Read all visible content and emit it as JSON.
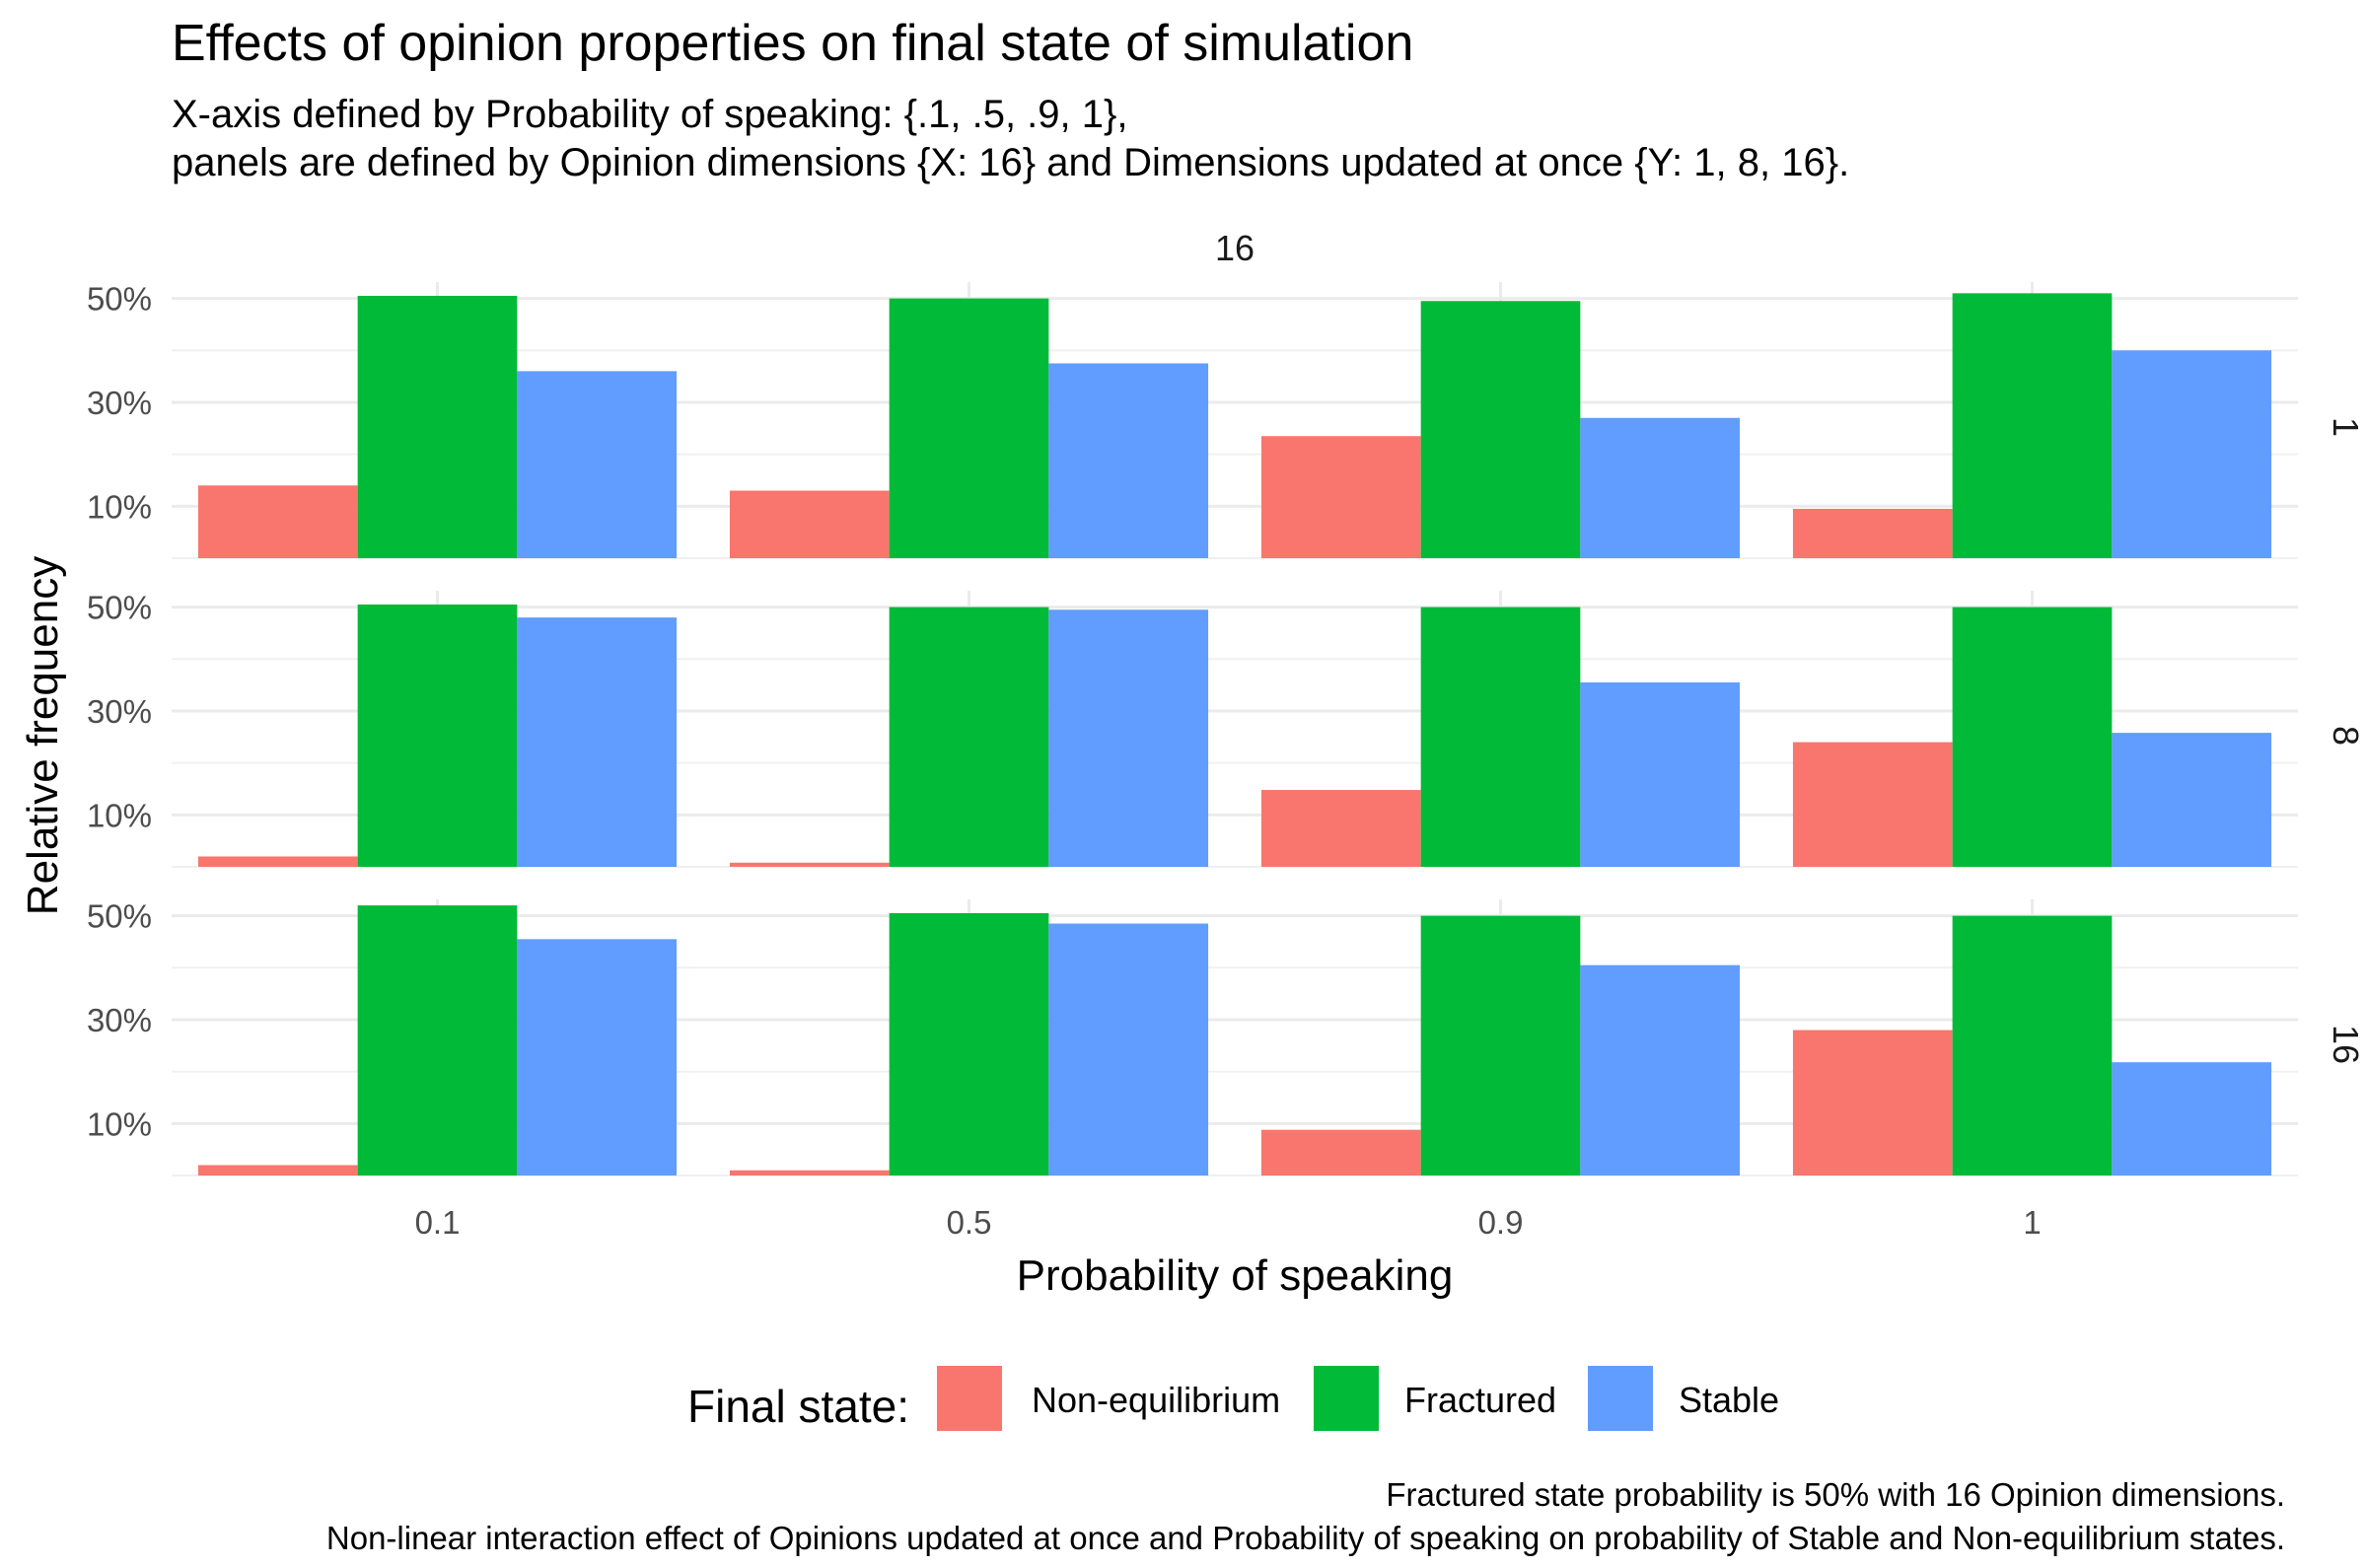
{
  "title": "Effects of opinion properties on final state of simulation",
  "subtitle_lines": [
    "X-axis defined by Probability of speaking: {.1, .5, .9, 1},",
    "panels are defined by Opinion dimensions {X: 16} and Dimensions updated at once {Y: 1, 8, 16}."
  ],
  "caption_lines": [
    "Fractured state probability is 50% with 16 Opinion dimensions.",
    "Non-linear interaction effect of Opinions updated at once and Probability of speaking on probability of Stable and Non-equilibrium states."
  ],
  "legend": {
    "title": "Final state:",
    "items": [
      {
        "label": "Non-equilibrium",
        "color": "#F8766D"
      },
      {
        "label": "Fractured",
        "color": "#00BA38"
      },
      {
        "label": "Stable",
        "color": "#619CFF"
      }
    ]
  },
  "chart_data": {
    "type": "bar",
    "facet_column_label": "16",
    "xlabel": "Probability of speaking",
    "ylabel": "Relative frequency",
    "categories": [
      "0.1",
      "0.5",
      "0.9",
      "1"
    ],
    "y_ticks": [
      "10%",
      "30%",
      "50%"
    ],
    "y_tick_values": [
      0.1,
      0.3,
      0.5
    ],
    "ylim": [
      0,
      0.505
    ],
    "grid": true,
    "legend_position": "bottom",
    "panels": [
      {
        "facet_row_label": "1",
        "series": [
          {
            "name": "Non-equilibrium",
            "values": [
              0.14,
              0.13,
              0.235,
              0.095
            ]
          },
          {
            "name": "Fractured",
            "values": [
              0.505,
              0.5,
              0.495,
              0.51
            ]
          },
          {
            "name": "Stable",
            "values": [
              0.36,
              0.375,
              0.27,
              0.4
            ]
          }
        ]
      },
      {
        "facet_row_label": "8",
        "series": [
          {
            "name": "Non-equilibrium",
            "values": [
              0.02,
              0.008,
              0.148,
              0.24
            ]
          },
          {
            "name": "Fractured",
            "values": [
              0.505,
              0.5,
              0.5,
              0.5
            ]
          },
          {
            "name": "Stable",
            "values": [
              0.48,
              0.495,
              0.355,
              0.258
            ]
          }
        ]
      },
      {
        "facet_row_label": "16",
        "series": [
          {
            "name": "Non-equilibrium",
            "values": [
              0.02,
              0.01,
              0.088,
              0.28
            ]
          },
          {
            "name": "Fractured",
            "values": [
              0.52,
              0.505,
              0.5,
              0.5
            ]
          },
          {
            "name": "Stable",
            "values": [
              0.455,
              0.485,
              0.405,
              0.218
            ]
          }
        ]
      }
    ]
  }
}
